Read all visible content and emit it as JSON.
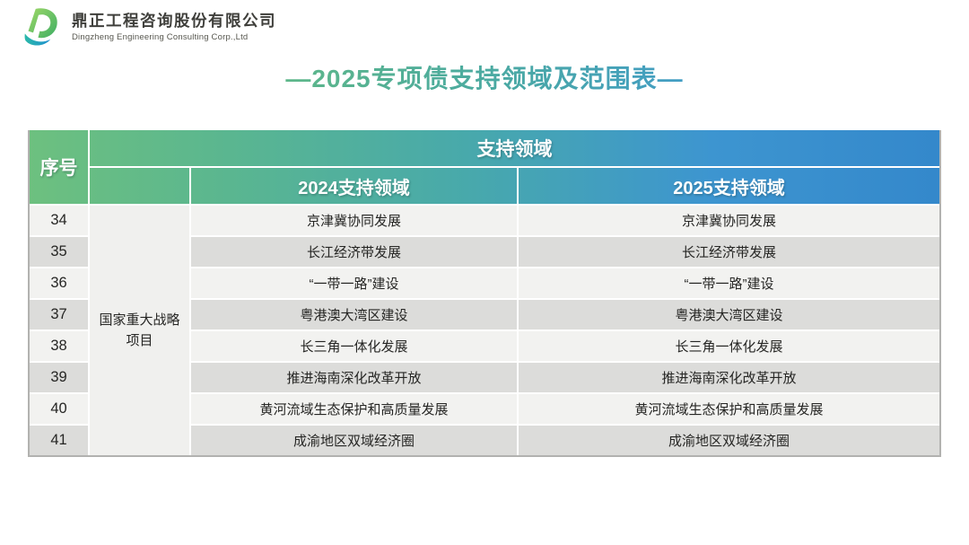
{
  "logo": {
    "company_zh": "鼎正工程咨询股份有限公司",
    "company_en": "Dingzheng Engineering Consulting Corp.,Ltd"
  },
  "title": "—2025专项债支持领域及范围表—",
  "table": {
    "headers": {
      "index": "序号",
      "support_area": "支持领域",
      "col_2024": "2024支持领域",
      "col_2025": "2025支持领域"
    },
    "category": "国家重大战略项目",
    "rows": [
      {
        "no": "34",
        "area_2024": "京津冀协同发展",
        "area_2025": "京津冀协同发展"
      },
      {
        "no": "35",
        "area_2024": "长江经济带发展",
        "area_2025": "长江经济带发展"
      },
      {
        "no": "36",
        "area_2024": "“一带一路”建设",
        "area_2025": "“一带一路”建设"
      },
      {
        "no": "37",
        "area_2024": "粤港澳大湾区建设",
        "area_2025": "粤港澳大湾区建设"
      },
      {
        "no": "38",
        "area_2024": "长三角一体化发展",
        "area_2025": "长三角一体化发展"
      },
      {
        "no": "39",
        "area_2024": "推进海南深化改革开放",
        "area_2025": "推进海南深化改革开放"
      },
      {
        "no": "40",
        "area_2024": "黄河流域生态保护和高质量发展",
        "area_2025": "黄河流域生态保护和高质量发展"
      },
      {
        "no": "41",
        "area_2024": "成渝地区双域经济圈",
        "area_2025": "成渝地区双域经济圈"
      }
    ]
  },
  "colors": {
    "accent_green": "#6dc07f",
    "accent_teal": "#48a9ab",
    "accent_blue": "#3488cb",
    "row_light": "#f2f2f0",
    "row_dark": "#dcdcda"
  }
}
